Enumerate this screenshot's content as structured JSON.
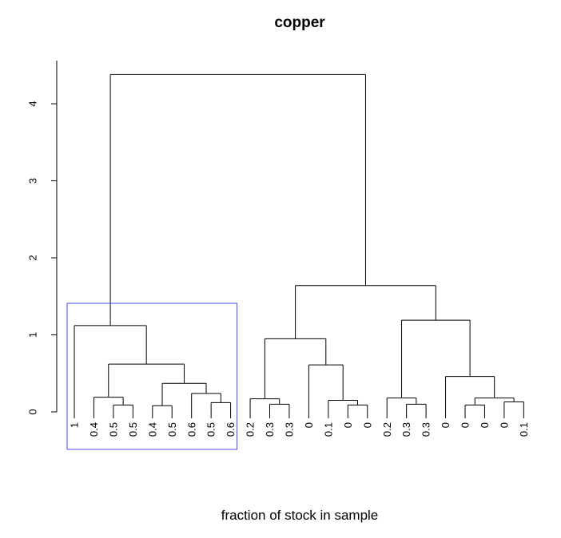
{
  "chart_data": {
    "type": "dendrogram",
    "title": "copper",
    "xlabel": "fraction of stock in sample",
    "ylabel": "",
    "ylim": [
      0,
      4.6
    ],
    "yticks": [
      0,
      1,
      2,
      3,
      4
    ],
    "leaves": [
      "1",
      "0.4",
      "0.5",
      "0.5",
      "0.4",
      "0.5",
      "0.6",
      "0.5",
      "0.6",
      "0.2",
      "0.3",
      "0.3",
      "0",
      "0.1",
      "0",
      "0",
      "0.2",
      "0.3",
      "0.3",
      "0",
      "0",
      "0",
      "0",
      "0.1"
    ],
    "merges": [
      {
        "a": "L2",
        "b": "L3",
        "h": 0.09
      },
      {
        "a": "L1",
        "b": "M0",
        "h": 0.19
      },
      {
        "a": "L4",
        "b": "L5",
        "h": 0.08
      },
      {
        "a": "L7",
        "b": "L8",
        "h": 0.12
      },
      {
        "a": "L6",
        "b": "M3",
        "h": 0.24
      },
      {
        "a": "M2",
        "b": "M4",
        "h": 0.37
      },
      {
        "a": "M1",
        "b": "M5",
        "h": 0.62
      },
      {
        "a": "L0",
        "b": "M6",
        "h": 1.12
      },
      {
        "a": "L10",
        "b": "L11",
        "h": 0.1
      },
      {
        "a": "L9",
        "b": "M8",
        "h": 0.17
      },
      {
        "a": "L14",
        "b": "L15",
        "h": 0.09
      },
      {
        "a": "L13",
        "b": "M10",
        "h": 0.15
      },
      {
        "a": "L12",
        "b": "M11",
        "h": 0.61
      },
      {
        "a": "M9",
        "b": "M12",
        "h": 0.95
      },
      {
        "a": "L17",
        "b": "L18",
        "h": 0.1
      },
      {
        "a": "L16",
        "b": "M14",
        "h": 0.18
      },
      {
        "a": "L20",
        "b": "L21",
        "h": 0.09
      },
      {
        "a": "L22",
        "b": "L23",
        "h": 0.13
      },
      {
        "a": "M16",
        "b": "M17",
        "h": 0.18
      },
      {
        "a": "L19",
        "b": "M18",
        "h": 0.46
      },
      {
        "a": "M15",
        "b": "M19",
        "h": 1.19
      },
      {
        "a": "M13",
        "b": "M20",
        "h": 1.64
      },
      {
        "a": "M7",
        "b": "M21",
        "h": 4.38
      }
    ],
    "highlight": {
      "first_leaf": 0,
      "last_leaf": 8,
      "color": "#4a4ae8"
    }
  }
}
